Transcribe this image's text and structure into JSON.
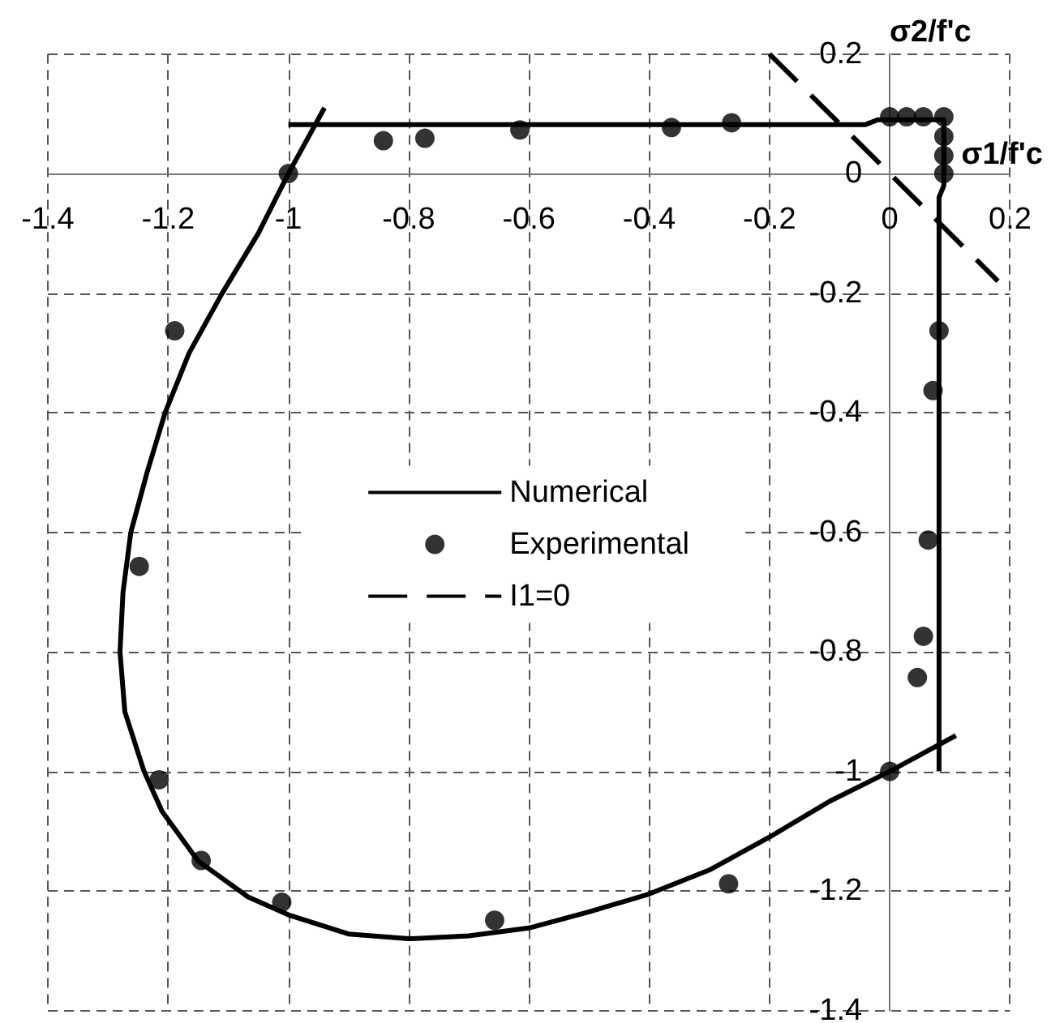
{
  "chart_data": {
    "type": "line",
    "xlabel": "σ1/f'c",
    "ylabel": "σ2/f'c",
    "xlim": [
      -1.4,
      0.2
    ],
    "ylim": [
      -1.4,
      0.2
    ],
    "xticks": [
      -1.4,
      -1.2,
      -1,
      -0.8,
      -0.6,
      -0.4,
      -0.2,
      0,
      0.2
    ],
    "yticks": [
      -1.4,
      -1.2,
      -1,
      -0.8,
      -0.6,
      -0.4,
      -0.2,
      0,
      0.2
    ],
    "grid": true,
    "legend": "center",
    "series": [
      {
        "name": "Numerical",
        "type": "line",
        "color": "#000000",
        "line_style": "solid",
        "marker": "none",
        "x": [
          -0.94,
          -1.0,
          -1.05,
          -1.11,
          -1.165,
          -1.205,
          -1.235,
          -1.262,
          -1.275,
          -1.28,
          -1.272,
          -1.24,
          -1.21,
          -1.15,
          -1.067,
          -1.0,
          -0.9,
          -0.8,
          -0.7,
          -0.6,
          -0.5,
          -0.4,
          -0.3,
          -0.2,
          -0.1,
          0.0,
          0.11,
          null,
          -1.0,
          -0.04,
          -0.02,
          0.09,
          0.09,
          0.082,
          0.082
        ],
        "values": [
          0.11,
          0.0,
          -0.1,
          -0.2,
          -0.3,
          -0.4,
          -0.5,
          -0.6,
          -0.7,
          -0.8,
          -0.9,
          -1.0,
          -1.067,
          -1.15,
          -1.21,
          -1.24,
          -1.272,
          -1.28,
          -1.275,
          -1.262,
          -1.235,
          -1.205,
          -1.165,
          -1.11,
          -1.05,
          -1.0,
          -0.94,
          null,
          0.082,
          0.082,
          0.09,
          0.09,
          -0.02,
          -0.04,
          -1.0
        ]
      },
      {
        "name": "Experimental",
        "type": "scatter",
        "color": "#000000",
        "marker": "circle",
        "x": [
          -1.248,
          -1.215,
          -1.189,
          -1.145,
          -1.011,
          -1.0,
          -0.842,
          -0.773,
          -0.657,
          -0.615,
          -0.363,
          -0.268,
          -0.263,
          0.0,
          0.0,
          0.028,
          0.046,
          0.056,
          0.056,
          0.064,
          0.072,
          0.082,
          0.09,
          0.09,
          0.09,
          0.09
        ],
        "values": [
          -0.657,
          -1.014,
          -0.263,
          -1.149,
          -1.219,
          0.0,
          0.055,
          0.059,
          -1.249,
          0.073,
          0.077,
          -1.188,
          0.085,
          0.095,
          -1.0,
          0.095,
          -0.843,
          -0.774,
          0.095,
          -0.613,
          -0.363,
          -0.263,
          0.095,
          0.062,
          0.03,
          0.0
        ]
      },
      {
        "name": "I1=0",
        "type": "line",
        "color": "#000000",
        "line_style": "dashed",
        "marker": "none",
        "x": [
          -0.2,
          0.18
        ],
        "values": [
          0.2,
          -0.18
        ]
      }
    ]
  }
}
